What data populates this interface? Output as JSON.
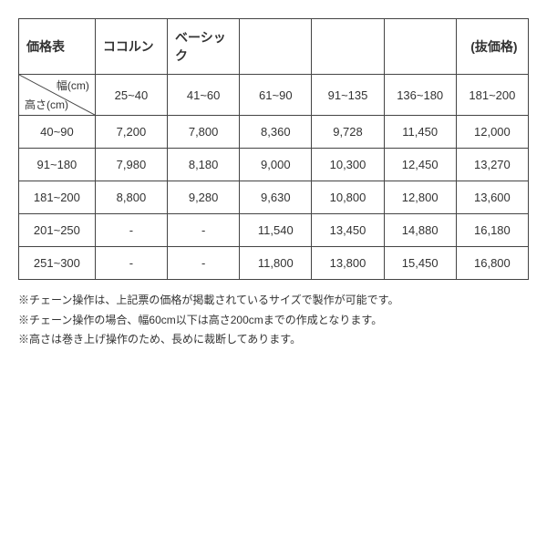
{
  "table": {
    "header_row1": [
      "価格表",
      "ココルン",
      "ベーシック",
      "",
      "",
      "",
      "(抜価格)"
    ],
    "diag": {
      "top": "幅(cm)",
      "bottom": "高さ(cm)"
    },
    "width_ranges": [
      "25~40",
      "41~60",
      "61~90",
      "91~135",
      "136~180",
      "181~200"
    ],
    "rows": [
      {
        "h": "40~90",
        "v": [
          "7,200",
          "7,800",
          "8,360",
          "9,728",
          "11,450",
          "12,000"
        ]
      },
      {
        "h": "91~180",
        "v": [
          "7,980",
          "8,180",
          "9,000",
          "10,300",
          "12,450",
          "13,270"
        ]
      },
      {
        "h": "181~200",
        "v": [
          "8,800",
          "9,280",
          "9,630",
          "10,800",
          "12,800",
          "13,600"
        ]
      },
      {
        "h": "201~250",
        "v": [
          "-",
          "-",
          "11,540",
          "13,450",
          "14,880",
          "16,180"
        ]
      },
      {
        "h": "251~300",
        "v": [
          "-",
          "-",
          "11,800",
          "13,800",
          "15,450",
          "16,800"
        ]
      }
    ]
  },
  "notes": [
    "※チェーン操作は、上記票の価格が掲載されているサイズで製作が可能です。",
    "※チェーン操作の場合、幅60cm以下は高さ200cmまでの作成となります。",
    "※高さは巻き上げ操作のため、長めに裁断してあります。"
  ]
}
